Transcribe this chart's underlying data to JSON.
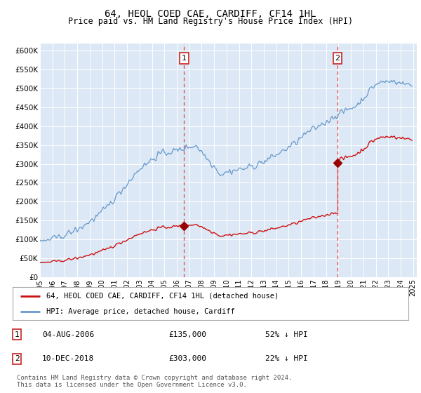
{
  "title": "64, HEOL COED CAE, CARDIFF, CF14 1HL",
  "subtitle": "Price paid vs. HM Land Registry's House Price Index (HPI)",
  "title_fontsize": 10,
  "subtitle_fontsize": 8.5,
  "background_color": "#ffffff",
  "plot_bg_color": "#dce8f5",
  "outside_bg_color": "#e8e8e8",
  "ylim": [
    0,
    620000
  ],
  "yticks": [
    0,
    50000,
    100000,
    150000,
    200000,
    250000,
    300000,
    350000,
    400000,
    450000,
    500000,
    550000,
    600000
  ],
  "ytick_labels": [
    "£0",
    "£50K",
    "£100K",
    "£150K",
    "£200K",
    "£250K",
    "£300K",
    "£350K",
    "£400K",
    "£450K",
    "£500K",
    "£550K",
    "£600K"
  ],
  "hpi_color": "#6699cc",
  "price_color": "#cc1111",
  "marker_color": "#990000",
  "dashed_line_color": "#dd4444",
  "purchase1_year": 2006.583,
  "purchase1_price": 135000,
  "purchase2_year": 2018.917,
  "purchase2_price": 303000,
  "legend_label_red": "64, HEOL COED CAE, CARDIFF, CF14 1HL (detached house)",
  "legend_label_blue": "HPI: Average price, detached house, Cardiff",
  "purchase1_date": "04-AUG-2006",
  "purchase1_amount": "£135,000",
  "purchase1_pct": "52% ↓ HPI",
  "purchase2_date": "10-DEC-2018",
  "purchase2_amount": "£303,000",
  "purchase2_pct": "22% ↓ HPI",
  "footer": "Contains HM Land Registry data © Crown copyright and database right 2024.\nThis data is licensed under the Open Government Licence v3.0."
}
